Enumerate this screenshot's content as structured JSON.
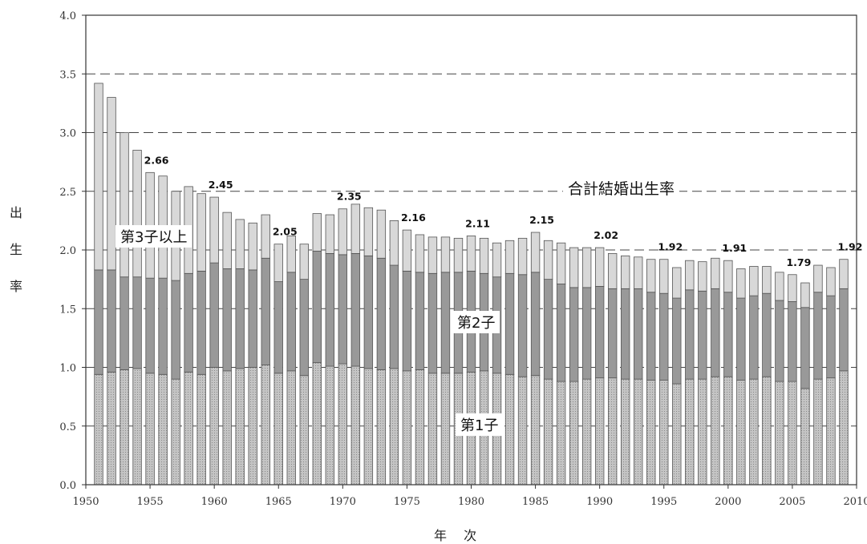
{
  "chart_data": {
    "type": "bar",
    "stacked": true,
    "title": "合計結婚出生率",
    "xlabel": "年 次",
    "ylabel": "出生率",
    "ylabel_chars": [
      "出",
      "生",
      "率"
    ],
    "ylim": [
      0.0,
      4.0
    ],
    "xlim": [
      1950,
      2010
    ],
    "y_ticks": [
      "0.0",
      "0.5",
      "1.0",
      "1.5",
      "2.0",
      "2.5",
      "3.0",
      "3.5",
      "4.0"
    ],
    "x_ticks": [
      "1950",
      "1955",
      "1960",
      "1965",
      "1970",
      "1975",
      "1980",
      "1985",
      "1990",
      "1995",
      "2000",
      "2005",
      "2010"
    ],
    "grid": "dashed horizontal",
    "x": [
      1951,
      1952,
      1953,
      1954,
      1955,
      1956,
      1957,
      1958,
      1959,
      1960,
      1961,
      1962,
      1963,
      1964,
      1965,
      1966,
      1967,
      1968,
      1969,
      1970,
      1971,
      1972,
      1973,
      1974,
      1975,
      1976,
      1977,
      1978,
      1979,
      1980,
      1981,
      1982,
      1983,
      1984,
      1985,
      1986,
      1987,
      1988,
      1989,
      1990,
      1991,
      1992,
      1993,
      1994,
      1995,
      1996,
      1997,
      1998,
      1999,
      2000,
      2001,
      2002,
      2003,
      2004,
      2005,
      2006,
      2007,
      2008,
      2009
    ],
    "series": [
      {
        "name": "第1子",
        "color": "#c8c8c8",
        "values": [
          0.94,
          0.96,
          0.98,
          0.99,
          0.95,
          0.94,
          0.9,
          0.96,
          0.94,
          1.0,
          0.97,
          0.99,
          1.0,
          1.02,
          0.95,
          0.97,
          0.93,
          1.04,
          1.01,
          1.03,
          1.01,
          0.99,
          0.98,
          0.99,
          0.97,
          0.98,
          0.95,
          0.95,
          0.95,
          0.96,
          0.97,
          0.95,
          0.94,
          0.92,
          0.93,
          0.9,
          0.88,
          0.88,
          0.9,
          0.91,
          0.91,
          0.9,
          0.9,
          0.89,
          0.89,
          0.86,
          0.9,
          0.9,
          0.92,
          0.92,
          0.89,
          0.9,
          0.92,
          0.88,
          0.88,
          0.82,
          0.9,
          0.91,
          0.97
        ]
      },
      {
        "name": "第2子",
        "color": "#999999",
        "values": [
          0.89,
          0.87,
          0.79,
          0.78,
          0.81,
          0.82,
          0.84,
          0.84,
          0.88,
          0.89,
          0.87,
          0.85,
          0.83,
          0.91,
          0.78,
          0.84,
          0.82,
          0.95,
          0.96,
          0.93,
          0.96,
          0.96,
          0.95,
          0.88,
          0.85,
          0.83,
          0.85,
          0.86,
          0.86,
          0.86,
          0.83,
          0.82,
          0.86,
          0.87,
          0.88,
          0.85,
          0.83,
          0.8,
          0.78,
          0.78,
          0.76,
          0.77,
          0.77,
          0.75,
          0.74,
          0.73,
          0.76,
          0.75,
          0.75,
          0.72,
          0.7,
          0.71,
          0.71,
          0.69,
          0.68,
          0.69,
          0.74,
          0.7,
          0.7
        ]
      },
      {
        "name": "第3子以上",
        "color": "#d8d8d8",
        "values": [
          1.59,
          1.47,
          1.23,
          1.08,
          0.9,
          0.87,
          0.76,
          0.74,
          0.66,
          0.56,
          0.48,
          0.42,
          0.4,
          0.37,
          0.32,
          0.31,
          0.3,
          0.32,
          0.33,
          0.39,
          0.42,
          0.41,
          0.41,
          0.38,
          0.35,
          0.32,
          0.31,
          0.3,
          0.29,
          0.3,
          0.3,
          0.29,
          0.28,
          0.31,
          0.34,
          0.33,
          0.35,
          0.34,
          0.34,
          0.33,
          0.3,
          0.28,
          0.27,
          0.28,
          0.29,
          0.26,
          0.25,
          0.25,
          0.26,
          0.27,
          0.25,
          0.25,
          0.23,
          0.24,
          0.23,
          0.21,
          0.23,
          0.24,
          0.25
        ]
      }
    ],
    "annotations": [
      {
        "year": 1955,
        "label": "2.66"
      },
      {
        "year": 1960,
        "label": "2.45"
      },
      {
        "year": 1965,
        "label": "2.05"
      },
      {
        "year": 1970,
        "label": "2.35"
      },
      {
        "year": 1975,
        "label": "2.16"
      },
      {
        "year": 1980,
        "label": "2.11"
      },
      {
        "year": 1985,
        "label": "2.15"
      },
      {
        "year": 1990,
        "label": "2.02"
      },
      {
        "year": 1995,
        "label": "1.92"
      },
      {
        "year": 2000,
        "label": "1.91"
      },
      {
        "year": 2005,
        "label": "1.79"
      },
      {
        "year": 2009,
        "label": "1.92"
      }
    ],
    "series_labels": [
      "第1子",
      "第2子",
      "第3子以上"
    ]
  }
}
